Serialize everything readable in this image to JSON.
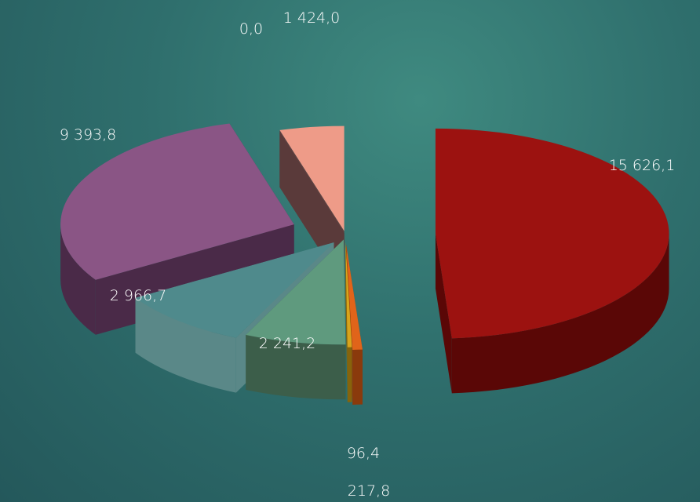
{
  "chart_data": {
    "type": "pie",
    "style": "exploded-3d",
    "title": "",
    "slices": [
      {
        "label": "15 626,1",
        "value": 15626.1,
        "color": "#9c1210",
        "side": "#5a0706"
      },
      {
        "label": "217,8",
        "value": 217.8,
        "color": "#e0641a",
        "side": "#8a3a0c"
      },
      {
        "label": "96,4",
        "value": 96.4,
        "color": "#d8a41c",
        "side": "#86640c"
      },
      {
        "label": "2 241,2",
        "value": 2241.2,
        "color": "#5f9a7e",
        "side": "#3c5e4a"
      },
      {
        "label": "2 966,7",
        "value": 2966.7,
        "color": "#4f8a8c",
        "side": "#5a8888"
      },
      {
        "label": "9 393,8",
        "value": 9393.8,
        "color": "#8a5585",
        "side": "#4a2a48"
      },
      {
        "label": "0,0",
        "value": 0.0,
        "color": "#7a3a3a",
        "side": "#5a3a3a"
      },
      {
        "label": "1 424,0",
        "value": 1424.0,
        "color": "#ee9b88",
        "side": "#5e4040"
      }
    ]
  }
}
